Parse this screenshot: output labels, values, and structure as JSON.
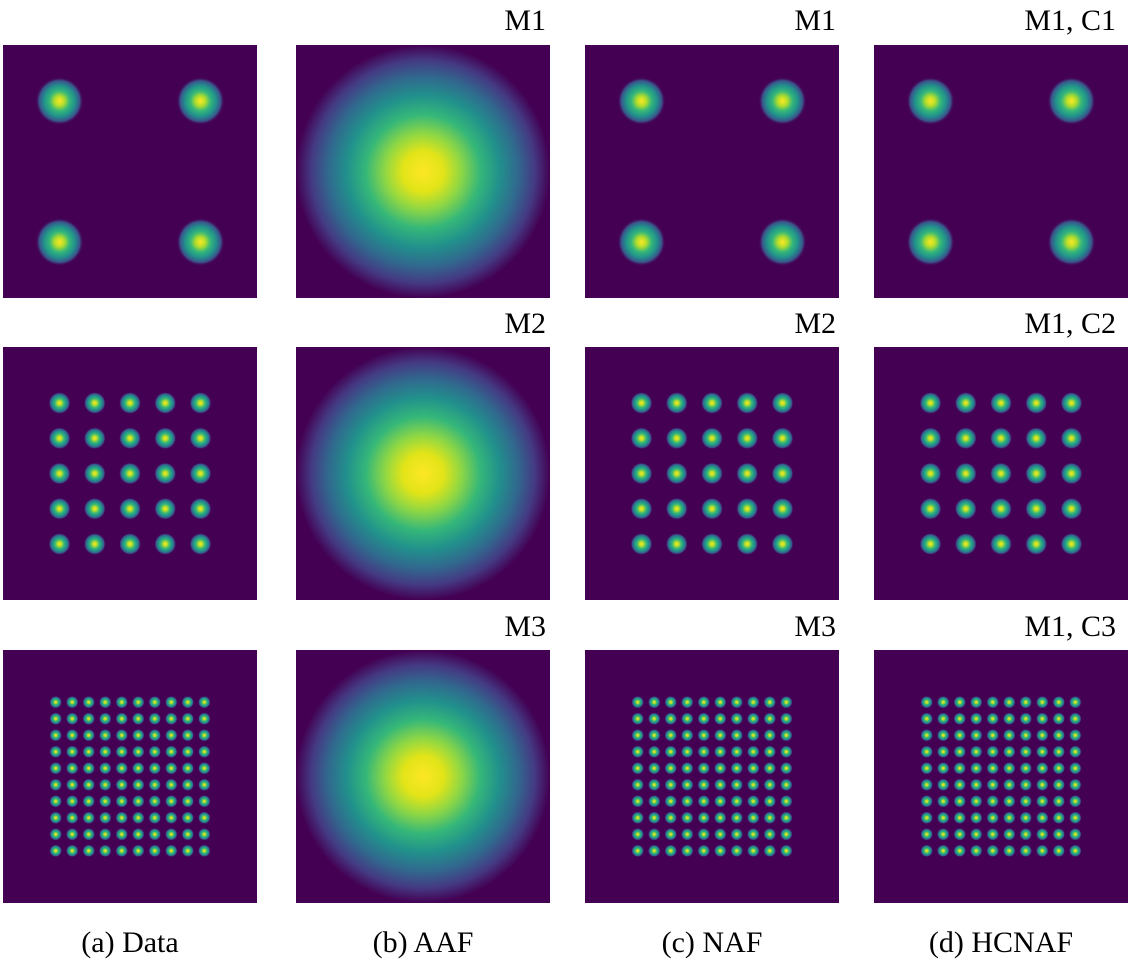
{
  "colors": {
    "background": "#440154",
    "peak": "#fde725",
    "colormap": "viridis"
  },
  "columns": [
    {
      "caption": "(a) Data"
    },
    {
      "caption": "(b) AAF"
    },
    {
      "caption": "(c) NAF"
    },
    {
      "caption": "(d) HCNAF"
    }
  ],
  "rows": [
    {
      "grid": 2,
      "labels": [
        "",
        "M1",
        "M1",
        "M1, C1"
      ]
    },
    {
      "grid": 5,
      "labels": [
        "",
        "M2",
        "M2",
        "M1, C2"
      ]
    },
    {
      "grid": 10,
      "labels": [
        "",
        "M3",
        "M3",
        "M1, C3"
      ]
    }
  ],
  "panels": [
    [
      {
        "kind": "grid",
        "grid": 2
      },
      {
        "kind": "single"
      },
      {
        "kind": "grid",
        "grid": 2
      },
      {
        "kind": "grid",
        "grid": 2
      }
    ],
    [
      {
        "kind": "grid",
        "grid": 5
      },
      {
        "kind": "single"
      },
      {
        "kind": "grid",
        "grid": 5
      },
      {
        "kind": "grid",
        "grid": 5
      }
    ],
    [
      {
        "kind": "grid",
        "grid": 10
      },
      {
        "kind": "single"
      },
      {
        "kind": "grid",
        "grid": 10
      },
      {
        "kind": "grid",
        "grid": 10
      }
    ]
  ]
}
